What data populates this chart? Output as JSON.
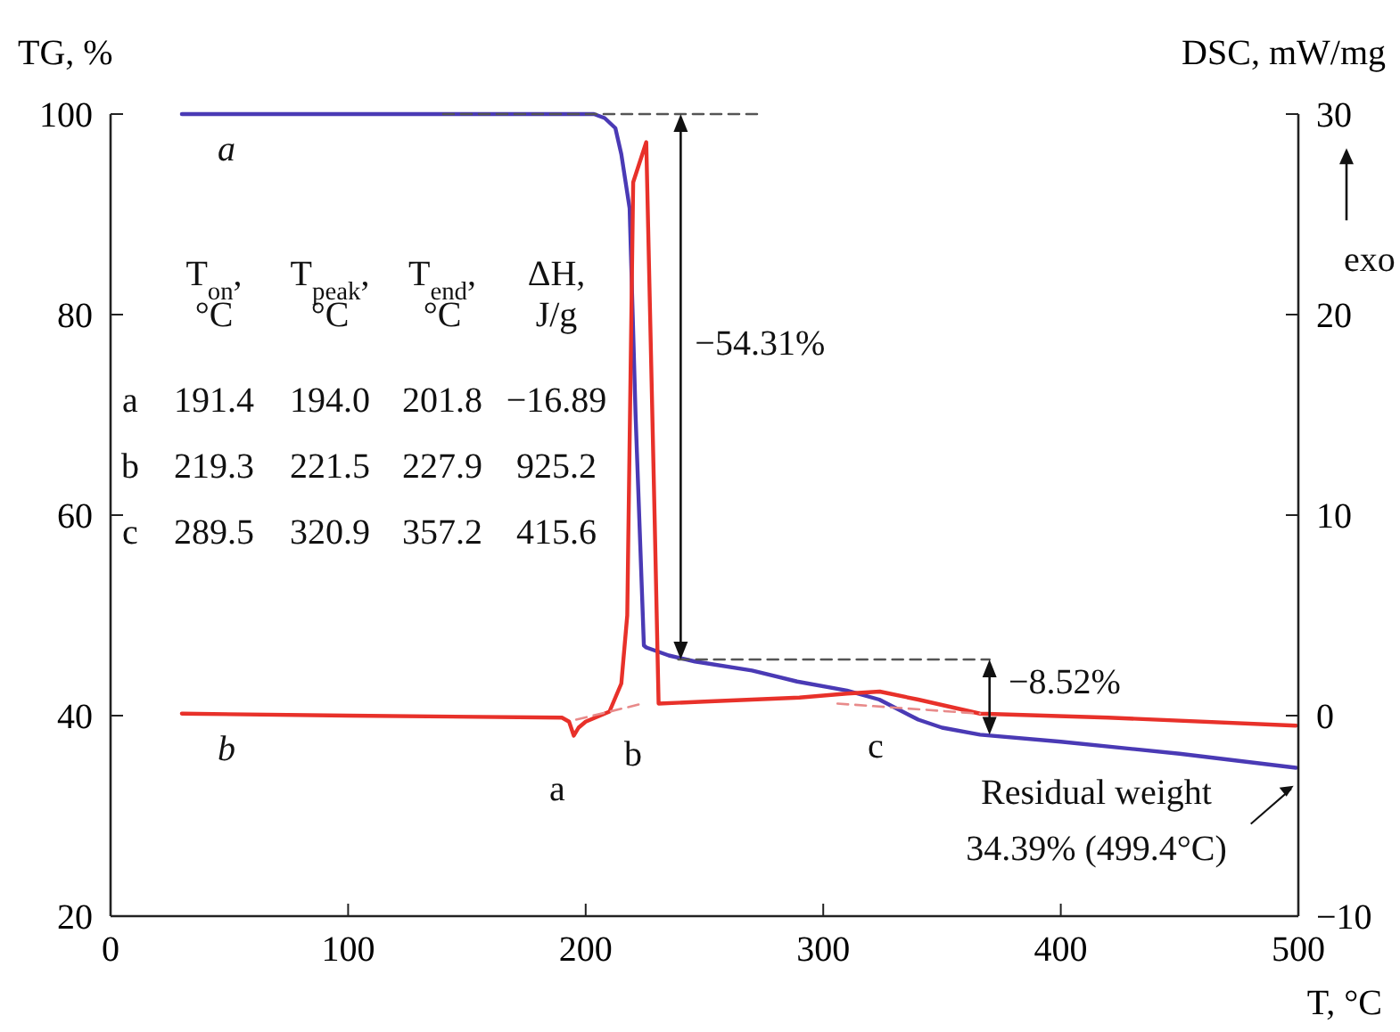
{
  "chart_data": {
    "type": "line",
    "ylabel": "TG, %",
    "y2label": "DSC, mW/mg",
    "xlabel": "T, °C",
    "xlim": [
      0,
      500
    ],
    "xticks": [
      0,
      100,
      200,
      300,
      400,
      500
    ],
    "ylim": [
      20,
      100
    ],
    "yticks": [
      20,
      40,
      60,
      80,
      100
    ],
    "y2lim": [
      -10,
      30
    ],
    "y2ticks": [
      -10,
      0,
      10,
      20,
      30
    ],
    "line_style": "solid",
    "marker": "none",
    "series": [
      {
        "name": "a",
        "color": "#4a3ab5",
        "x": [
          30,
          100,
          200,
          203.5,
          208,
          212.5,
          215,
          218.5,
          221,
          224.5,
          225.5,
          235,
          246,
          270,
          289,
          310,
          323.6,
          340,
          350,
          366,
          400,
          450,
          499
        ],
        "values": [
          100,
          100,
          100,
          100,
          99.6,
          98.6,
          96,
          90.6,
          70,
          47,
          46.8,
          46,
          45.4,
          44.5,
          43.4,
          42.5,
          41.6,
          39.6,
          38.8,
          38.1,
          37.4,
          36.2,
          34.8
        ]
      },
      {
        "name": "b",
        "axis": "y2",
        "color": "#e8312a",
        "x": [
          30,
          100,
          190,
          193,
          195,
          197,
          200,
          210,
          215,
          217.5,
          220,
          225.5,
          229,
          230.7,
          250,
          290,
          310,
          323.8,
          340,
          366,
          420,
          499
        ],
        "values": [
          0.1,
          0,
          -0.1,
          -0.3,
          -1,
          -0.6,
          -0.3,
          0.2,
          1.6,
          5,
          26.6,
          28.6,
          10,
          0.6,
          0.7,
          0.9,
          1.1,
          1.2,
          0.8,
          0.1,
          -0.1,
          -0.5
        ]
      },
      {
        "type": "line",
        "line_style": "dashed",
        "color": "#555555",
        "x": [
          140,
          275
        ],
        "values": [
          100,
          100
        ]
      },
      {
        "type": "line",
        "line_style": "dashed",
        "color": "#555555",
        "x": [
          239,
          370
        ],
        "values": [
          45.6,
          45.6
        ]
      },
      {
        "type": "line",
        "line_style": "dashed",
        "axis": "y2",
        "color": "#e88a8a",
        "x": [
          196,
          224
        ],
        "values": [
          -0.2,
          0.6
        ]
      },
      {
        "type": "line",
        "line_style": "dashed",
        "axis": "y2",
        "color": "#e88a8a",
        "x": [
          306,
          366
        ],
        "values": [
          0.6,
          0.1
        ]
      }
    ],
    "annotations": [
      "−54.31%",
      "−8.52%",
      "Residual weight",
      "34.39% (499.4°C)",
      "exo",
      "a",
      "b",
      "c",
      "T$_{on}$,",
      "T$_{peak}$,",
      "T$_{end}$,",
      "ΔH,",
      "°C",
      "°C",
      "°C",
      "J/g",
      "a",
      "191.4",
      "194.0",
      "201.8",
      "−16.89",
      "b",
      "219.3",
      "221.5",
      "227.9",
      "925.2",
      "c",
      "289.5",
      "320.9",
      "357.2",
      "415.6"
    ]
  }
}
